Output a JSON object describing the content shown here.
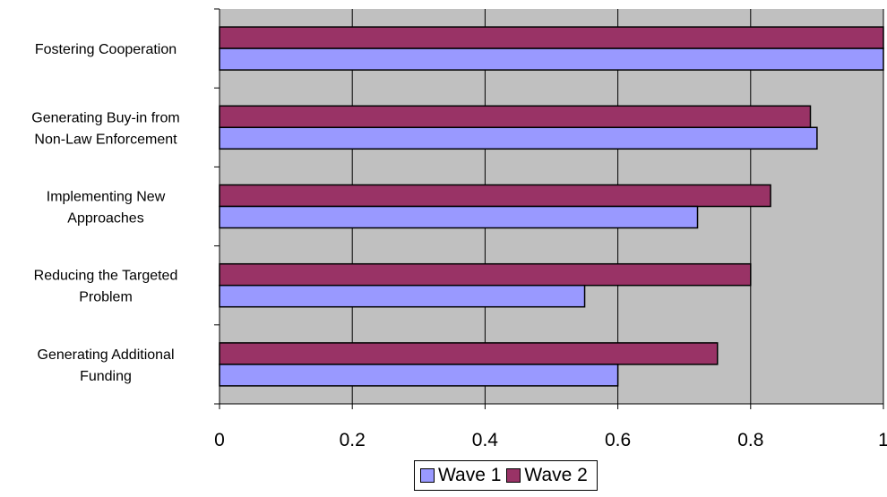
{
  "chart_data": {
    "type": "bar",
    "orientation": "horizontal",
    "categories": [
      [
        "Fostering Cooperation"
      ],
      [
        "Generating Buy-in from",
        "Non-Law Enforcement"
      ],
      [
        "Implementing New",
        "Approaches"
      ],
      [
        "Reducing the Targeted",
        "Problem"
      ],
      [
        "Generating Additional",
        "Funding"
      ]
    ],
    "series": [
      {
        "name": "Wave 1",
        "color": "#9999ff",
        "values": [
          1.0,
          0.9,
          0.72,
          0.55,
          0.6
        ]
      },
      {
        "name": "Wave 2",
        "color": "#993366",
        "values": [
          1.0,
          0.89,
          0.83,
          0.8,
          0.75
        ]
      }
    ],
    "xlim": [
      0,
      1
    ],
    "xticks": [
      "0",
      "0.2",
      "0.4",
      "0.6",
      "0.8",
      "1"
    ],
    "grid": true,
    "plot_background": "#c0c0c0",
    "legend_position": "bottom"
  }
}
